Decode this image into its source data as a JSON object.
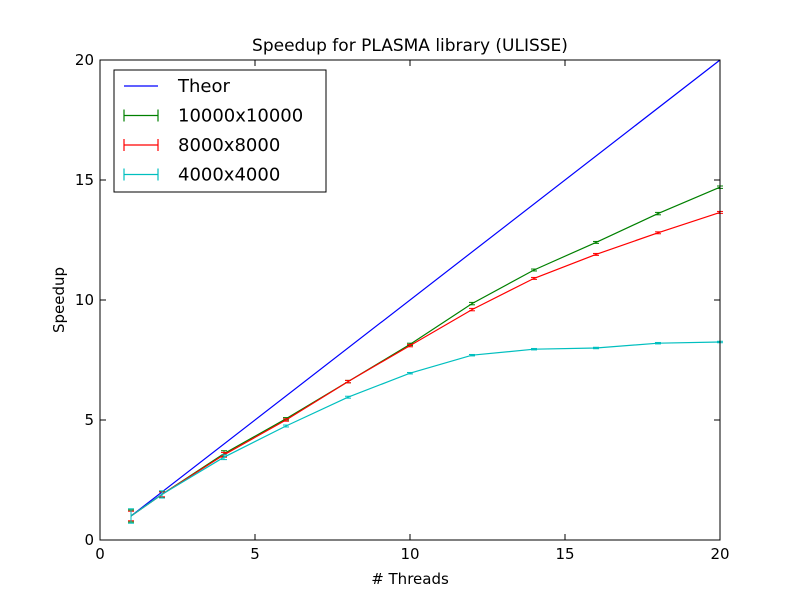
{
  "chart_data": {
    "type": "line",
    "title": "Speedup for PLASMA library (ULISSE)",
    "xlabel": "# Threads",
    "ylabel": "Speedup",
    "xlim": [
      0,
      20
    ],
    "ylim": [
      0,
      20
    ],
    "xticks": [
      "0",
      "5",
      "10",
      "15",
      "20"
    ],
    "yticks": [
      "0",
      "5",
      "10",
      "15",
      "20"
    ],
    "legend_position": "upper-left",
    "grid": false,
    "series": [
      {
        "name": "Theor",
        "color": "#0000ff",
        "errorbars": false,
        "x": [
          1,
          20
        ],
        "y": [
          1,
          20
        ]
      },
      {
        "name": "10000x10000",
        "color": "#008000",
        "errorbars": true,
        "x": [
          1,
          2,
          4,
          6,
          8,
          10,
          12,
          14,
          16,
          18,
          20
        ],
        "y": [
          1.0,
          1.9,
          3.6,
          5.05,
          6.6,
          8.15,
          9.85,
          11.25,
          12.4,
          13.6,
          14.7
        ],
        "err": [
          0.25,
          0.12,
          0.12,
          0.05,
          0.05,
          0.05,
          0.05,
          0.04,
          0.04,
          0.05,
          0.05
        ]
      },
      {
        "name": "8000x8000",
        "color": "#ff0000",
        "errorbars": true,
        "x": [
          1,
          2,
          4,
          6,
          8,
          10,
          12,
          14,
          16,
          18,
          20
        ],
        "y": [
          1.0,
          1.9,
          3.55,
          5.0,
          6.6,
          8.1,
          9.6,
          10.9,
          11.9,
          12.8,
          13.65
        ],
        "err": [
          0.2,
          0.1,
          0.1,
          0.05,
          0.05,
          0.05,
          0.05,
          0.04,
          0.04,
          0.04,
          0.04
        ]
      },
      {
        "name": "4000x4000",
        "color": "#00bfbf",
        "errorbars": true,
        "x": [
          1,
          2,
          4,
          6,
          8,
          10,
          12,
          14,
          16,
          18,
          20
        ],
        "y": [
          1.0,
          1.9,
          3.45,
          4.75,
          5.95,
          6.95,
          7.7,
          7.95,
          8.0,
          8.2,
          8.25
        ],
        "err": [
          0.3,
          0.15,
          0.1,
          0.04,
          0.04,
          0.03,
          0.03,
          0.03,
          0.03,
          0.03,
          0.03
        ]
      }
    ]
  }
}
